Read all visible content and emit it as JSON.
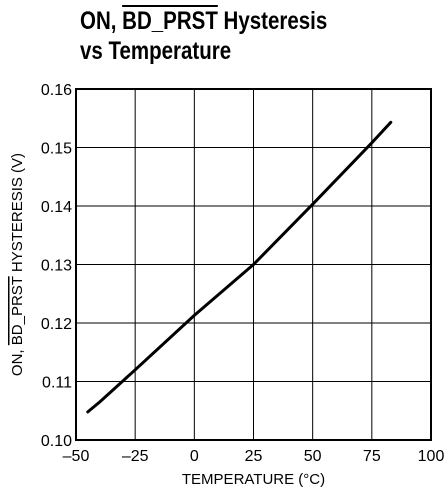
{
  "title": {
    "line1_prefix": "ON, ",
    "line1_overlined": "BD_PRST",
    "line1_suffix": " Hysteresis",
    "line2": "vs Temperature"
  },
  "chart_data": {
    "type": "line",
    "title": "ON, BD_PRST Hysteresis vs Temperature",
    "xlabel": "TEMPERATURE (°C)",
    "ylabel_prefix": "ON, ",
    "ylabel_overlined": "BD_PRST",
    "ylabel_suffix": " HYSTERESIS (V)",
    "xlim": [
      -50,
      100
    ],
    "ylim": [
      0.1,
      0.16
    ],
    "xticks": [
      "–50",
      "–25",
      "0",
      "25",
      "50",
      "75",
      "100"
    ],
    "xtick_values": [
      -50,
      -25,
      0,
      25,
      50,
      75,
      100
    ],
    "yticks": [
      "0.10",
      "0.11",
      "0.12",
      "0.13",
      "0.14",
      "0.15",
      "0.16"
    ],
    "ytick_values": [
      0.1,
      0.11,
      0.12,
      0.13,
      0.14,
      0.15,
      0.16
    ],
    "grid": true,
    "series": [
      {
        "x": [
          -45,
          -40,
          -25,
          0,
          25,
          50,
          75,
          83
        ],
        "y": [
          0.1048,
          0.1065,
          0.112,
          0.1213,
          0.13,
          0.1403,
          0.1508,
          0.1543
        ]
      }
    ]
  }
}
